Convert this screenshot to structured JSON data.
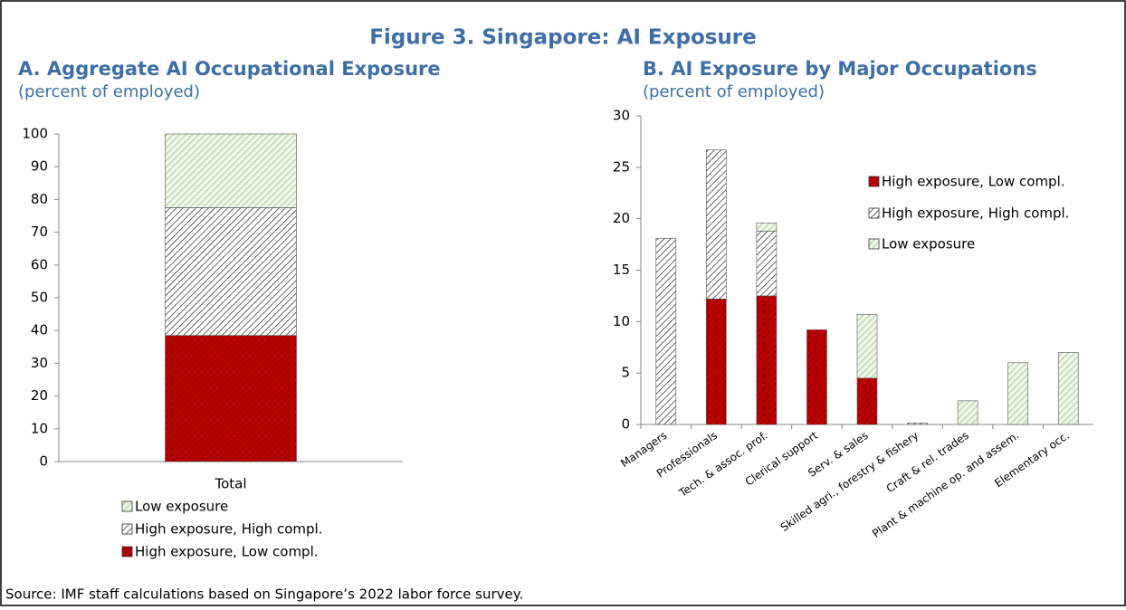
{
  "figure_title": "Figure 3. Singapore: AI Exposure",
  "source": "Source: IMF staff calculations based on Singapore’s 2022 labor force survey.",
  "chart_data": [
    {
      "type": "stacked_bar",
      "title": "A. Aggregate AI Occupational Exposure",
      "subtitle": "(percent of employed)",
      "categories": [
        "Total"
      ],
      "series": [
        {
          "name": "High exposure, Low compl.",
          "color": "#c00000",
          "hatch": "#6e0000",
          "values": [
            38.5
          ]
        },
        {
          "name": "High exposure, High compl.",
          "color": "#ffffff",
          "hatch": "#404040",
          "values": [
            39
          ]
        },
        {
          "name": "Low exposure",
          "color": "#f1f7ea",
          "hatch": "#93c47d",
          "values": [
            22.5
          ]
        }
      ],
      "ylim": [
        0,
        100
      ],
      "yticks": [
        0,
        10,
        20,
        30,
        40,
        50,
        60,
        70,
        80,
        90,
        100
      ],
      "legend": "bottom",
      "legend_reverse": true
    },
    {
      "type": "stacked_bar",
      "title": "B. AI Exposure by Major Occupations",
      "subtitle": "(percent of employed)",
      "categories": [
        "Managers",
        "Professionals",
        "Tech. & assoc. prof.",
        "Clerical support",
        "Serv. & sales",
        "Skilled agri., forestry & fishery",
        "Craft & rel. trades",
        "Plant & machine op. and assem.",
        "Elementary occ."
      ],
      "series": [
        {
          "name": "High exposure, Low compl.",
          "color": "#c00000",
          "hatch": "#6e0000",
          "values": [
            0,
            12.2,
            12.5,
            9.2,
            4.5,
            0,
            0,
            0,
            0
          ]
        },
        {
          "name": "High exposure, High compl.",
          "color": "#ffffff",
          "hatch": "#404040",
          "values": [
            18.1,
            14.5,
            6.3,
            0,
            0,
            0.15,
            0,
            0,
            0
          ]
        },
        {
          "name": "Low exposure",
          "color": "#f1f7ea",
          "hatch": "#93c47d",
          "values": [
            0,
            0,
            0.8,
            0,
            6.2,
            0,
            2.3,
            6.0,
            7.0
          ]
        }
      ],
      "ylim": [
        0,
        30
      ],
      "yticks": [
        0,
        5,
        10,
        15,
        20,
        25,
        30
      ],
      "legend": "upper right",
      "legend_reverse": false
    }
  ]
}
